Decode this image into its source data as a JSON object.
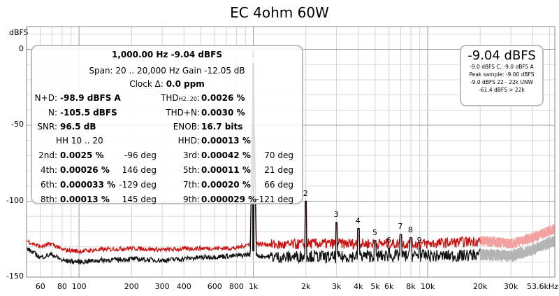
{
  "chart_data": {
    "type": "line",
    "title": "EC 4ohm 60W",
    "ylabel": "dBFS",
    "xscale": "log",
    "xlim": [
      50,
      53600
    ],
    "ylim": [
      -150,
      15
    ],
    "yticks": [
      0,
      -50,
      -100,
      -150
    ],
    "xticks": [
      {
        "v": 60,
        "t": "60"
      },
      {
        "v": 80,
        "t": "80"
      },
      {
        "v": 100,
        "t": "100"
      },
      {
        "v": 200,
        "t": "200"
      },
      {
        "v": 300,
        "t": "300"
      },
      {
        "v": 400,
        "t": "400"
      },
      {
        "v": 600,
        "t": "600"
      },
      {
        "v": 800,
        "t": "800"
      },
      {
        "v": 1000,
        "t": "1k"
      },
      {
        "v": 2000,
        "t": "2k"
      },
      {
        "v": 3000,
        "t": "3k"
      },
      {
        "v": 4000,
        "t": "4k"
      },
      {
        "v": 5000,
        "t": "5k"
      },
      {
        "v": 6000,
        "t": "6k"
      },
      {
        "v": 8000,
        "t": "8k"
      },
      {
        "v": 10000,
        "t": "10k"
      },
      {
        "v": 20000,
        "t": "20k"
      },
      {
        "v": 30000,
        "t": "30k"
      },
      {
        "v": 53600,
        "t": "53.6kHz"
      }
    ],
    "grid": true,
    "series": [
      {
        "color": "#cc1111",
        "x": [
          50,
          60,
          70,
          80,
          100,
          130,
          200,
          300,
          500,
          800,
          960,
          1000,
          1040,
          1500,
          2000,
          3000,
          4000,
          6000,
          10000,
          15000,
          20000,
          30000,
          40000,
          53600
        ],
        "y": [
          -126,
          -130,
          -128,
          -132,
          -133,
          -132,
          -131,
          -132,
          -131,
          -131,
          -128,
          -9,
          -128,
          -129,
          -128,
          -128,
          -128,
          -128,
          -128,
          -127,
          -126,
          -128,
          -124,
          -118
        ]
      },
      {
        "color": "#111111",
        "x": [
          50,
          60,
          70,
          80,
          100,
          130,
          200,
          300,
          500,
          800,
          960,
          1000,
          1040,
          1500,
          2000,
          3000,
          4000,
          6000,
          10000,
          15000,
          20000,
          30000,
          40000,
          53600
        ],
        "y": [
          -131,
          -137,
          -135,
          -139,
          -140,
          -139,
          -138,
          -139,
          -137,
          -136,
          -135,
          -9,
          -136,
          -137,
          -136,
          -137,
          -136,
          -136,
          -136,
          -136,
          -135,
          -136,
          -132,
          -126
        ]
      }
    ],
    "harmonics": [
      {
        "label": "1",
        "f": 1000,
        "level": -9
      },
      {
        "label": "2",
        "f": 2000,
        "level": -100
      },
      {
        "label": "3",
        "f": 3000,
        "level": -114
      },
      {
        "label": "4",
        "f": 4000,
        "level": -118
      },
      {
        "label": "5",
        "f": 5000,
        "level": -126
      },
      {
        "label": "6",
        "f": 6000,
        "level": -131
      },
      {
        "label": "7",
        "f": 7000,
        "level": -122
      },
      {
        "label": "8",
        "f": 8000,
        "level": -124
      },
      {
        "label": "9",
        "f": 9000,
        "level": -131
      }
    ]
  },
  "readout": {
    "line1": "1,000.00 Hz  -9.04 dBFS",
    "line2": "Span: 20 .. 20,000 Hz   Gain -12.05 dB",
    "clock_label": "Clock Δ:",
    "clock_value": "0.0 ppm",
    "nd_label": "N+D:",
    "nd_value": "-98.9 dBFS A",
    "n_label": "N:",
    "n_value": "-105.5 dBFS",
    "snr_label": "SNR:",
    "snr_value": "96.5 dB",
    "hh_label": "HH 10 .. 20",
    "thd_label": "THD",
    "thd_sub": "H2..20",
    "thd_colon": ":",
    "thd_value": "0.0026 %",
    "thdn_label": "THD+N:",
    "thdn_value": "0.0030 %",
    "enob_label": "ENOB:",
    "enob_value": "16.7 bits",
    "hhd_label": "HHD:",
    "hhd_value": "0.00013 %",
    "rows": [
      {
        "l": "2nd:",
        "v": "0.0025 %",
        "d": "-96 deg",
        "l2": "3rd:",
        "v2": "0.00042 %",
        "d2": "70 deg"
      },
      {
        "l": "4th:",
        "v": "0.00026 %",
        "d": "146 deg",
        "l2": "5th:",
        "v2": "0.00011 %",
        "d2": "21 deg"
      },
      {
        "l": "6th:",
        "v": "0.000033 %",
        "d": "-129 deg",
        "l2": "7th:",
        "v2": "0.00020 %",
        "d2": "66 deg"
      },
      {
        "l": "8th:",
        "v": "0.00013 %",
        "d": "145 deg",
        "l2": "9th:",
        "v2": "0.000029 %",
        "d2": "-121 deg"
      }
    ]
  },
  "level_box": {
    "big": "-9.04 dBFS",
    "l1": "-9.0 dBFS C, -9.0 dBFS A",
    "l2": "Peak sample: -9.00 dBFS",
    "l3": "-9.0 dBFS 22 - 22k UNW",
    "l4": "-61.4 dBFS > 22k"
  },
  "colors": {
    "red_trace": "#cc1111",
    "black_trace": "#111111",
    "grey_trace": "#b4b4b4",
    "pink_trace": "#f2a0a0"
  }
}
